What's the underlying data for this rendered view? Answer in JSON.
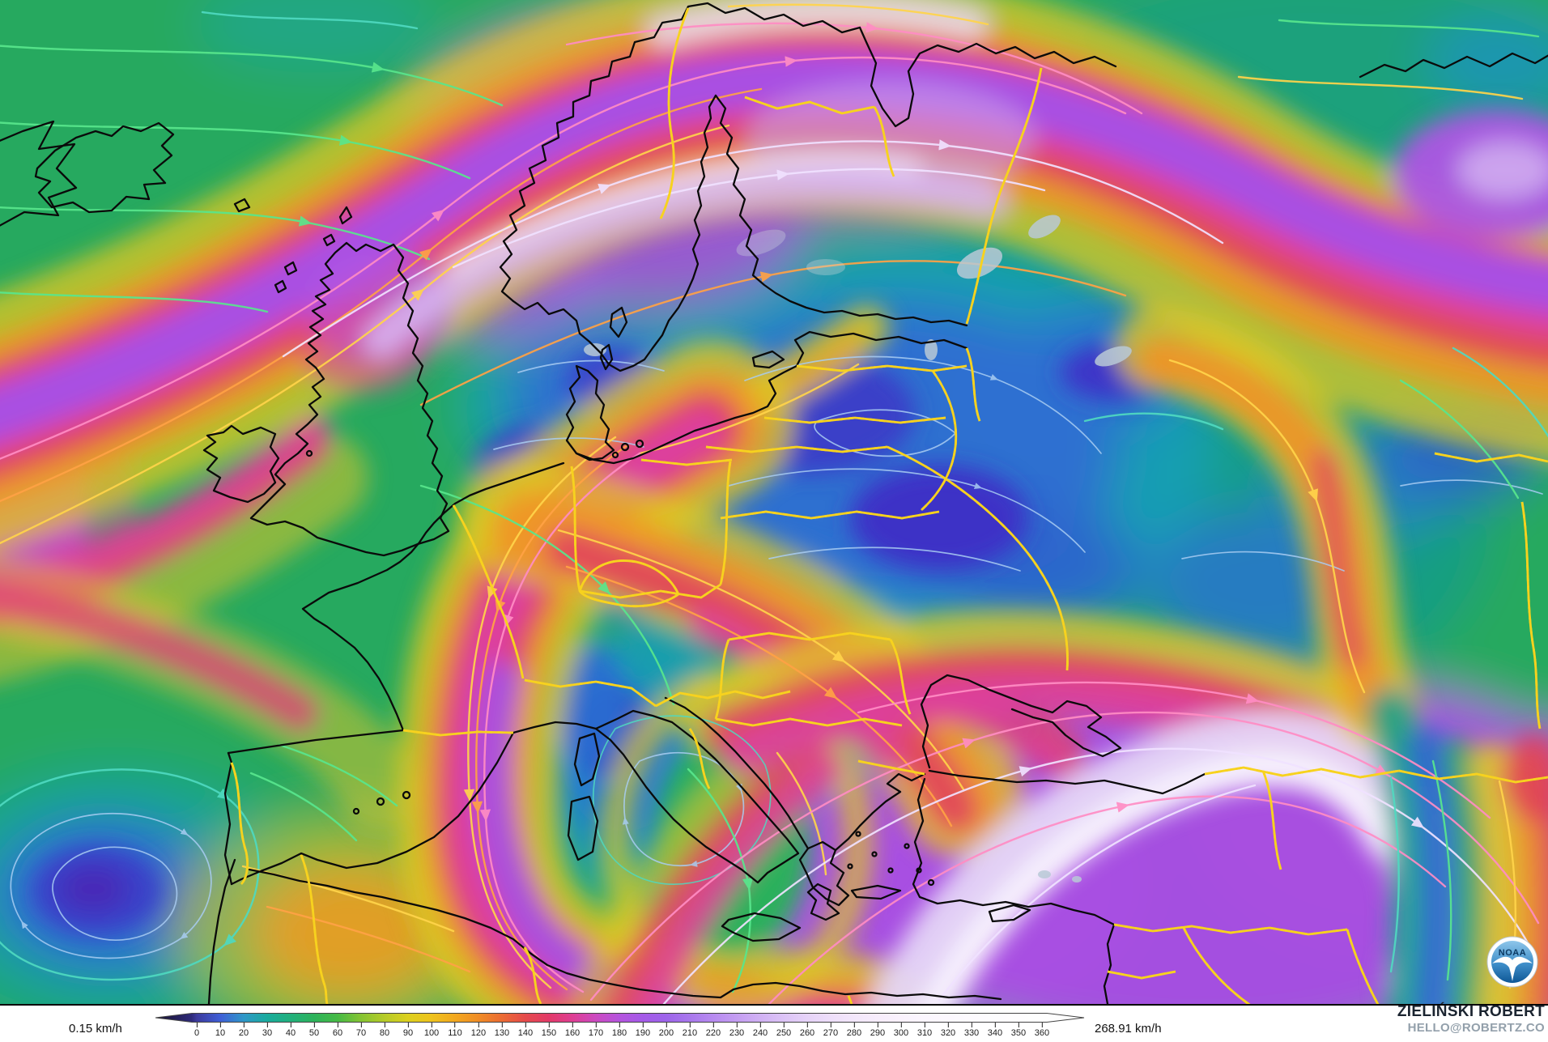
{
  "map": {
    "description": "wind-speed-field-over-europe",
    "base_color": "#28a95f"
  },
  "legend": {
    "min_label": "0.15 km/h",
    "max_label": "268.91 km/h",
    "tip_left_color": "#17122e",
    "tip_left_inner": "#2e2a7a",
    "tip_right_color": "#ffffff",
    "ticks": [
      0,
      10,
      20,
      30,
      40,
      50,
      60,
      70,
      80,
      90,
      100,
      110,
      120,
      130,
      140,
      150,
      160,
      170,
      180,
      190,
      200,
      210,
      220,
      230,
      240,
      250,
      260,
      270,
      280,
      290,
      300,
      310,
      320,
      330,
      340,
      350,
      360
    ],
    "colorbar_stops": [
      {
        "value": 0,
        "color": "#3c3a9c"
      },
      {
        "value": 10,
        "color": "#3f5ed6"
      },
      {
        "value": 20,
        "color": "#2f97c8"
      },
      {
        "value": 30,
        "color": "#19ab9d"
      },
      {
        "value": 40,
        "color": "#21b07c"
      },
      {
        "value": 50,
        "color": "#2db35b"
      },
      {
        "value": 60,
        "color": "#46ba45"
      },
      {
        "value": 70,
        "color": "#85c433"
      },
      {
        "value": 80,
        "color": "#b5cb28"
      },
      {
        "value": 90,
        "color": "#dcd01f"
      },
      {
        "value": 100,
        "color": "#eec31d"
      },
      {
        "value": 110,
        "color": "#f2a81f"
      },
      {
        "value": 120,
        "color": "#f08d26"
      },
      {
        "value": 130,
        "color": "#eb6c33"
      },
      {
        "value": 140,
        "color": "#e54b4b"
      },
      {
        "value": 150,
        "color": "#e23a68"
      },
      {
        "value": 160,
        "color": "#de3e92"
      },
      {
        "value": 170,
        "color": "#cc4ac0"
      },
      {
        "value": 180,
        "color": "#b554dd"
      },
      {
        "value": 190,
        "color": "#a55ae8"
      },
      {
        "value": 200,
        "color": "#9d64ea"
      },
      {
        "value": 210,
        "color": "#a877ec"
      },
      {
        "value": 220,
        "color": "#b78af0"
      },
      {
        "value": 230,
        "color": "#c49df2"
      },
      {
        "value": 240,
        "color": "#d1b1f4"
      },
      {
        "value": 250,
        "color": "#dcc3f6"
      },
      {
        "value": 260,
        "color": "#e6d3f8"
      },
      {
        "value": 270,
        "color": "#eedefa"
      },
      {
        "value": 280,
        "color": "#f3e7fb"
      },
      {
        "value": 290,
        "color": "#f7edfc"
      },
      {
        "value": 300,
        "color": "#faf2fd"
      },
      {
        "value": 310,
        "color": "#fbf6fe"
      },
      {
        "value": 320,
        "color": "#fcf8fe"
      },
      {
        "value": 330,
        "color": "#fdfafe"
      },
      {
        "value": 340,
        "color": "#fdfcfe"
      },
      {
        "value": 350,
        "color": "#fefdfe"
      },
      {
        "value": 360,
        "color": "#fefefe"
      }
    ]
  },
  "credits": {
    "name": "ZIELIŃSKI ROBERT",
    "email": "HELLO@ROBERTZ.CO"
  },
  "logo": {
    "text": "NOAA"
  }
}
